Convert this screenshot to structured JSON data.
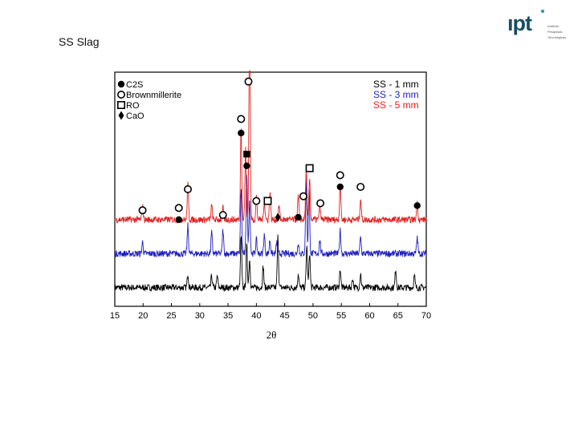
{
  "slide": {
    "title": "SS Slag"
  },
  "logo": {
    "mark": "ıpt",
    "sub": [
      "Instituto",
      "Pesquisas",
      "Tecnológicas"
    ],
    "color": "#1a4e63",
    "accent": "#2b8fb8"
  },
  "chart_data": {
    "type": "line",
    "xlabel": "2θ",
    "ylabel": "",
    "xlim": [
      15,
      70
    ],
    "xticks": [
      15,
      20,
      25,
      30,
      35,
      40,
      45,
      50,
      55,
      60,
      65,
      70
    ],
    "grid": false,
    "legend_position": "top-right",
    "series": [
      {
        "name": "SS - 1 mm",
        "color": "#000000",
        "baseline": 0.08,
        "peaks": [
          {
            "x": 27.9,
            "h": 0.06
          },
          {
            "x": 32.1,
            "h": 0.05
          },
          {
            "x": 33.1,
            "h": 0.05
          },
          {
            "x": 37.3,
            "h": 0.22
          },
          {
            "x": 38.3,
            "h": 0.18
          },
          {
            "x": 38.8,
            "h": 0.12
          },
          {
            "x": 41.2,
            "h": 0.09
          },
          {
            "x": 43.8,
            "h": 0.22
          },
          {
            "x": 47.4,
            "h": 0.06
          },
          {
            "x": 48.9,
            "h": 0.18
          },
          {
            "x": 49.4,
            "h": 0.15
          },
          {
            "x": 54.8,
            "h": 0.08
          },
          {
            "x": 57.0,
            "h": 0.04
          },
          {
            "x": 58.4,
            "h": 0.06
          },
          {
            "x": 64.6,
            "h": 0.08
          },
          {
            "x": 67.9,
            "h": 0.05
          }
        ]
      },
      {
        "name": "SS - 3 mm",
        "color": "#1f1fbf",
        "baseline": 0.225,
        "peaks": [
          {
            "x": 19.9,
            "h": 0.05
          },
          {
            "x": 27.9,
            "h": 0.12
          },
          {
            "x": 32.1,
            "h": 0.09
          },
          {
            "x": 34.1,
            "h": 0.1
          },
          {
            "x": 37.3,
            "h": 0.28
          },
          {
            "x": 38.3,
            "h": 0.35
          },
          {
            "x": 38.8,
            "h": 0.24
          },
          {
            "x": 40.0,
            "h": 0.06
          },
          {
            "x": 41.4,
            "h": 0.08
          },
          {
            "x": 42.4,
            "h": 0.06
          },
          {
            "x": 43.6,
            "h": 0.05
          },
          {
            "x": 47.4,
            "h": 0.05
          },
          {
            "x": 48.8,
            "h": 0.32
          },
          {
            "x": 49.3,
            "h": 0.28
          },
          {
            "x": 51.2,
            "h": 0.06
          },
          {
            "x": 54.8,
            "h": 0.1
          },
          {
            "x": 58.4,
            "h": 0.07
          },
          {
            "x": 68.4,
            "h": 0.07
          }
        ]
      },
      {
        "name": "SS - 5 mm",
        "color": "#e02020",
        "baseline": 0.37,
        "peaks": [
          {
            "x": 19.9,
            "h": 0.06
          },
          {
            "x": 27.9,
            "h": 0.15
          },
          {
            "x": 32.1,
            "h": 0.06
          },
          {
            "x": 34.1,
            "h": 0.05
          },
          {
            "x": 37.3,
            "h": 0.4
          },
          {
            "x": 38.1,
            "h": 0.3
          },
          {
            "x": 38.8,
            "h": 0.88
          },
          {
            "x": 40.0,
            "h": 0.1
          },
          {
            "x": 41.4,
            "h": 0.08
          },
          {
            "x": 42.4,
            "h": 0.12
          },
          {
            "x": 44.0,
            "h": 0.06
          },
          {
            "x": 47.4,
            "h": 0.1
          },
          {
            "x": 48.8,
            "h": 0.22
          },
          {
            "x": 49.4,
            "h": 0.18
          },
          {
            "x": 51.2,
            "h": 0.07
          },
          {
            "x": 54.8,
            "h": 0.15
          },
          {
            "x": 58.4,
            "h": 0.09
          },
          {
            "x": 68.4,
            "h": 0.07
          }
        ]
      }
    ],
    "phase_legend": [
      {
        "label": "C2S",
        "marker": "circle-filled"
      },
      {
        "label": "Brownmillerite",
        "marker": "circle-open"
      },
      {
        "label": "RO",
        "marker": "square-open"
      },
      {
        "label": "CaO",
        "marker": "diamond-filled"
      }
    ],
    "annotations": [
      {
        "x": 38.6,
        "y": 0.96,
        "marker": "circle-open"
      },
      {
        "x": 37.3,
        "y": 0.8,
        "marker": "circle-open"
      },
      {
        "x": 37.3,
        "y": 0.74,
        "marker": "circle-filled"
      },
      {
        "x": 38.3,
        "y": 0.65,
        "marker": "square-filled"
      },
      {
        "x": 38.3,
        "y": 0.6,
        "marker": "circle-filled"
      },
      {
        "x": 27.9,
        "y": 0.5,
        "marker": "circle-open"
      },
      {
        "x": 26.3,
        "y": 0.42,
        "marker": "circle-open"
      },
      {
        "x": 26.3,
        "y": 0.37,
        "marker": "circle-filled"
      },
      {
        "x": 19.9,
        "y": 0.41,
        "marker": "circle-open"
      },
      {
        "x": 34.1,
        "y": 0.39,
        "marker": "circle-open"
      },
      {
        "x": 40.0,
        "y": 0.45,
        "marker": "circle-open"
      },
      {
        "x": 42.0,
        "y": 0.45,
        "marker": "square-open"
      },
      {
        "x": 43.8,
        "y": 0.38,
        "marker": "diamond-filled"
      },
      {
        "x": 47.4,
        "y": 0.38,
        "marker": "circle-filled"
      },
      {
        "x": 48.3,
        "y": 0.47,
        "marker": "circle-open"
      },
      {
        "x": 49.4,
        "y": 0.59,
        "marker": "square-open"
      },
      {
        "x": 51.3,
        "y": 0.44,
        "marker": "circle-open"
      },
      {
        "x": 54.8,
        "y": 0.56,
        "marker": "circle-open"
      },
      {
        "x": 54.8,
        "y": 0.51,
        "marker": "circle-filled"
      },
      {
        "x": 58.4,
        "y": 0.51,
        "marker": "circle-open"
      },
      {
        "x": 68.4,
        "y": 0.43,
        "marker": "circle-filled"
      }
    ]
  }
}
